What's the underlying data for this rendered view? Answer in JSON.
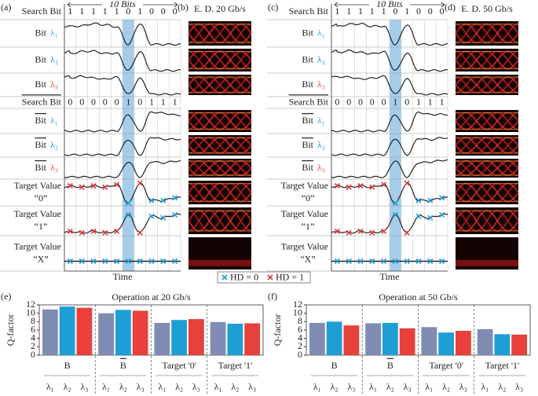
{
  "panels": [
    {
      "label": "(a)",
      "span": "10 Bits",
      "eye_label": "(b)",
      "eye_title": "E. D. 20 Gb/s"
    },
    {
      "label": "(c)",
      "span": "10 Bits",
      "eye_label": "(d)",
      "eye_title": "E. D. 50 Gb/s"
    }
  ],
  "rows": [
    {
      "text": "Search Bit",
      "bits": [
        "1",
        "1",
        "1",
        "1",
        "1",
        "0",
        "1",
        "0",
        "0",
        "0"
      ]
    },
    {
      "text": "Bit",
      "sub": "λ₁",
      "color": "#3aa3dc"
    },
    {
      "text": "Bit",
      "sub": "λ₂",
      "color": "#1f8fd0"
    },
    {
      "text": "Bit",
      "sub": "λ₃",
      "color": "#e8403a"
    },
    {
      "text": "Search Bit",
      "overline": true,
      "bits": [
        "0",
        "0",
        "0",
        "0",
        "0",
        "1",
        "0",
        "1",
        "1",
        "1"
      ]
    },
    {
      "text": "Bit",
      "overline": true,
      "sub": "λ₁",
      "color": "#3aa3dc"
    },
    {
      "text": "Bit",
      "overline": true,
      "sub": "λ₂",
      "color": "#1f8fd0"
    },
    {
      "text": "Bit",
      "overline": true,
      "sub": "λ₃",
      "color": "#e8403a"
    },
    {
      "text": "Target Value",
      "line2": "“0”"
    },
    {
      "text": "Target Value",
      "line2": "“1”"
    },
    {
      "text": "Target Value",
      "line2": "“X”"
    }
  ],
  "time_label": "Time",
  "legend": [
    {
      "name": "HD = 0",
      "color": "#1f9ed6"
    },
    {
      "name": "HD = 1",
      "color": "#e03a3a"
    }
  ],
  "chart_data": [
    {
      "type": "bar",
      "panel": "(e)",
      "title": "Operation at 20 Gb/s",
      "ylabel": "Q-factor",
      "categories": [
        "B",
        "B",
        "Target '0'",
        "Target '1'"
      ],
      "category_overline": [
        false,
        true,
        false,
        false
      ],
      "series": [
        {
          "name": "λ₁",
          "color": "#7f8db5",
          "values": [
            10.9,
            10.0,
            7.7,
            7.9
          ]
        },
        {
          "name": "λ₂",
          "color": "#1f9ed6",
          "values": [
            11.6,
            10.8,
            8.4,
            7.5
          ]
        },
        {
          "name": "λ₃",
          "color": "#e8403a",
          "values": [
            11.3,
            10.6,
            8.6,
            7.6
          ]
        }
      ],
      "ylim": [
        0,
        12
      ],
      "yticks": [
        0,
        2,
        4,
        6,
        8,
        10,
        12
      ]
    },
    {
      "type": "bar",
      "panel": "(f)",
      "title": "Operation at 50 Gb/s",
      "ylabel": "Q-factor",
      "categories": [
        "B",
        "B",
        "Target '0'",
        "Target '1'"
      ],
      "category_overline": [
        false,
        true,
        false,
        false
      ],
      "series": [
        {
          "name": "λ₁",
          "color": "#7f8db5",
          "values": [
            7.7,
            7.6,
            6.7,
            6.2
          ]
        },
        {
          "name": "λ₂",
          "color": "#1f9ed6",
          "values": [
            8.0,
            7.7,
            5.4,
            5.0
          ]
        },
        {
          "name": "λ₃",
          "color": "#e8403a",
          "values": [
            7.1,
            6.4,
            5.8,
            4.9
          ]
        }
      ],
      "ylim": [
        0,
        12
      ],
      "yticks": [
        0,
        2,
        4,
        6,
        8,
        10,
        12
      ]
    }
  ]
}
